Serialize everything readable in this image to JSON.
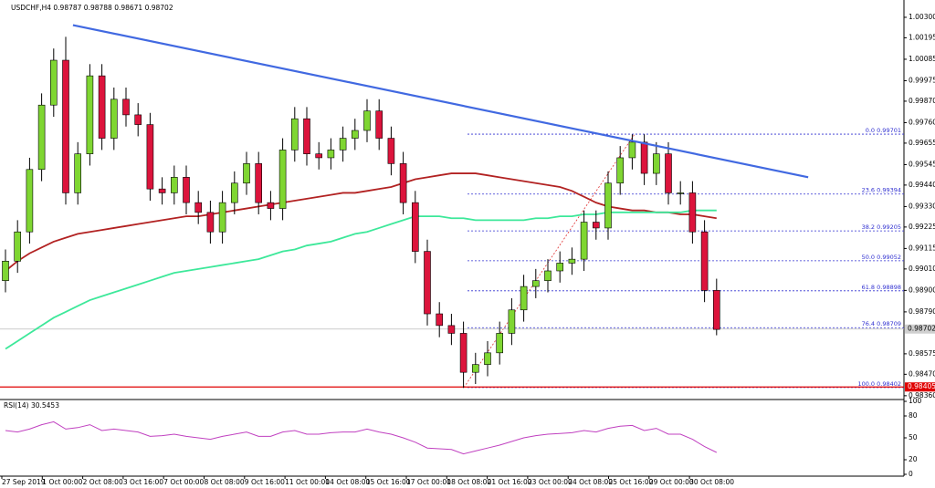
{
  "chart_data": {
    "type": "candlestick",
    "title": "USDCHF,H4  0.98787 0.98788 0.98671 0.98702",
    "bull_color": "#7fd632",
    "bear_color": "#dc143c",
    "open": [
      0.9895,
      0.9905,
      0.992,
      0.9952,
      0.9985,
      1.0008,
      0.994,
      0.996,
      1.0,
      0.9968,
      0.9988,
      0.998,
      0.9975,
      0.9942,
      0.994,
      0.9948,
      0.9935,
      0.993,
      0.992,
      0.9935,
      0.9945,
      0.9955,
      0.9935,
      0.9932,
      0.9962,
      0.9978,
      0.996,
      0.9958,
      0.9962,
      0.9968,
      0.9972,
      0.9982,
      0.9968,
      0.9955,
      0.9935,
      0.991,
      0.9878,
      0.9872,
      0.9868,
      0.9848,
      0.9852,
      0.9858,
      0.9868,
      0.988,
      0.9892,
      0.9895,
      0.99,
      0.9904,
      0.9906,
      0.9925,
      0.9922,
      0.9945,
      0.9958,
      0.9966,
      0.995,
      0.996,
      0.994,
      0.994,
      0.992,
      0.989
    ],
    "high": [
      0.9911,
      0.9926,
      0.9958,
      0.9991,
      1.0014,
      1.002,
      0.9966,
      1.0006,
      1.0006,
      0.9994,
      0.9994,
      0.9986,
      0.9981,
      0.9948,
      0.9954,
      0.9954,
      0.9941,
      0.9936,
      0.9941,
      0.9951,
      0.9961,
      0.9961,
      0.9941,
      0.9968,
      0.9984,
      0.9984,
      0.9966,
      0.9968,
      0.9974,
      0.9978,
      0.9988,
      0.9988,
      0.9974,
      0.9961,
      0.9941,
      0.9916,
      0.9884,
      0.9878,
      0.9874,
      0.9858,
      0.9864,
      0.9874,
      0.9886,
      0.9898,
      0.9901,
      0.9906,
      0.991,
      0.9912,
      0.9931,
      0.9931,
      0.9951,
      0.9964,
      0.997,
      0.997,
      0.9966,
      0.9966,
      0.9946,
      0.9946,
      0.9926,
      0.9896
    ],
    "low": [
      0.9889,
      0.9899,
      0.9914,
      0.9946,
      0.9979,
      0.9934,
      0.9934,
      0.9954,
      0.9962,
      0.9962,
      0.9974,
      0.9969,
      0.9936,
      0.9934,
      0.9934,
      0.9929,
      0.9924,
      0.9914,
      0.9914,
      0.9929,
      0.9939,
      0.9929,
      0.9926,
      0.9926,
      0.9956,
      0.9954,
      0.9952,
      0.9952,
      0.9956,
      0.9962,
      0.9966,
      0.9962,
      0.9949,
      0.9929,
      0.9904,
      0.9872,
      0.9866,
      0.9862,
      0.984,
      0.9842,
      0.9846,
      0.9852,
      0.9862,
      0.9874,
      0.9886,
      0.9889,
      0.9894,
      0.9898,
      0.99,
      0.9916,
      0.9916,
      0.9939,
      0.9952,
      0.9944,
      0.9944,
      0.9934,
      0.9934,
      0.9914,
      0.9884,
      0.9867
    ],
    "close": [
      0.9905,
      0.992,
      0.9952,
      0.9985,
      1.0008,
      0.994,
      0.996,
      1.0,
      0.9968,
      0.9988,
      0.998,
      0.9975,
      0.9942,
      0.994,
      0.9948,
      0.9935,
      0.993,
      0.992,
      0.9935,
      0.9945,
      0.9955,
      0.9935,
      0.9932,
      0.9962,
      0.9978,
      0.996,
      0.9958,
      0.9962,
      0.9968,
      0.9972,
      0.9982,
      0.9968,
      0.9955,
      0.9935,
      0.991,
      0.9878,
      0.9872,
      0.9868,
      0.9848,
      0.9852,
      0.9858,
      0.9868,
      0.988,
      0.9892,
      0.9895,
      0.99,
      0.9904,
      0.9906,
      0.9925,
      0.9922,
      0.9945,
      0.9958,
      0.9966,
      0.995,
      0.996,
      0.994,
      0.994,
      0.992,
      0.989,
      0.987
    ],
    "series": [
      {
        "color": "#b22222",
        "values": [
          0.99,
          0.9905,
          0.9909,
          0.9912,
          0.9915,
          0.9917,
          0.9919,
          0.992,
          0.9921,
          0.9922,
          0.9923,
          0.9924,
          0.9925,
          0.9926,
          0.9927,
          0.9928,
          0.9928,
          0.9929,
          0.993,
          0.9931,
          0.9932,
          0.9933,
          0.9934,
          0.9935,
          0.9936,
          0.9937,
          0.9938,
          0.9939,
          0.994,
          0.994,
          0.9941,
          0.9942,
          0.9943,
          0.9945,
          0.9947,
          0.9948,
          0.9949,
          0.995,
          0.995,
          0.995,
          0.9949,
          0.9948,
          0.9947,
          0.9946,
          0.9945,
          0.9944,
          0.9943,
          0.9941,
          0.9938,
          0.9935,
          0.9933,
          0.9932,
          0.9931,
          0.9931,
          0.993,
          0.993,
          0.9929,
          0.9929,
          0.9928,
          0.9927
        ]
      },
      {
        "color": "#3de89a",
        "values": [
          0.986,
          0.9864,
          0.9868,
          0.9872,
          0.9876,
          0.9879,
          0.9882,
          0.9885,
          0.9887,
          0.9889,
          0.9891,
          0.9893,
          0.9895,
          0.9897,
          0.9899,
          0.99,
          0.9901,
          0.9902,
          0.9903,
          0.9904,
          0.9905,
          0.9906,
          0.9908,
          0.991,
          0.9911,
          0.9913,
          0.9914,
          0.9915,
          0.9917,
          0.9919,
          0.992,
          0.9922,
          0.9924,
          0.9926,
          0.9928,
          0.9928,
          0.9928,
          0.9927,
          0.9927,
          0.9926,
          0.9926,
          0.9926,
          0.9926,
          0.9926,
          0.9927,
          0.9927,
          0.9928,
          0.9928,
          0.9929,
          0.9929,
          0.993,
          0.993,
          0.993,
          0.993,
          0.993,
          0.993,
          0.993,
          0.9931,
          0.9931,
          0.9931
        ]
      }
    ],
    "trendline": {
      "color": "#4169e1",
      "x": [
        5.6,
        66.6
      ],
      "y": [
        1.0026,
        0.9948
      ]
    },
    "fib_levels": [
      {
        "value": 0.99701,
        "label": "0.0  0.99701"
      },
      {
        "value": 0.99394,
        "label": "23.6  0.99394"
      },
      {
        "value": 0.99205,
        "label": "38.2  0.99205"
      },
      {
        "value": 0.99052,
        "label": "50.0  0.99052"
      },
      {
        "value": 0.98898,
        "label": "61.8  0.98898"
      },
      {
        "value": 0.98709,
        "label": "76.4  0.98709"
      },
      {
        "value": 0.98402,
        "label": "100.0  0.98402"
      }
    ],
    "current_price": 0.98702,
    "support_price": 0.98405,
    "ylim": [
      0.9835,
      1.0037
    ],
    "yticks": [
      {
        "value": 1.003,
        "label": "1.00300"
      },
      {
        "value": 1.00195,
        "label": "1.00195"
      },
      {
        "value": 1.00085,
        "label": "1.00085"
      },
      {
        "value": 0.99975,
        "label": "0.99975"
      },
      {
        "value": 0.9987,
        "label": "0.99870"
      },
      {
        "value": 0.9976,
        "label": "0.99760"
      },
      {
        "value": 0.99655,
        "label": "0.99655"
      },
      {
        "value": 0.99545,
        "label": "0.99545"
      },
      {
        "value": 0.9944,
        "label": "0.99440"
      },
      {
        "value": 0.9933,
        "label": "0.99330"
      },
      {
        "value": 0.99225,
        "label": "0.99225"
      },
      {
        "value": 0.99115,
        "label": "0.99115"
      },
      {
        "value": 0.9901,
        "label": "0.99010"
      },
      {
        "value": 0.989,
        "label": "0.98900"
      },
      {
        "value": 0.9879,
        "label": "0.98790"
      },
      {
        "value": 0.98575,
        "label": "0.98575"
      },
      {
        "value": 0.9847,
        "label": "0.98470"
      },
      {
        "value": 0.9836,
        "label": "0.98360"
      }
    ],
    "x_labels": [
      "27 Sep 2019",
      "1 Oct 00:00",
      "2 Oct 08:00",
      "3 Oct 16:00",
      "7 Oct 00:00",
      "8 Oct 08:00",
      "9 Oct 16:00",
      "11 Oct 00:00",
      "14 Oct 08:00",
      "15 Oct 16:00",
      "17 Oct 00:00",
      "18 Oct 08:00",
      "21 Oct 16:00",
      "23 Oct 00:00",
      "24 Oct 08:00",
      "25 Oct 16:00",
      "29 Oct 00:00",
      "30 Oct 08:00"
    ],
    "rsi": {
      "label": "RSI(14) 30.5453",
      "color": "#c040c0",
      "values": [
        60,
        58,
        62,
        68,
        72,
        62,
        64,
        68,
        60,
        62,
        60,
        58,
        52,
        53,
        55,
        52,
        50,
        48,
        52,
        55,
        58,
        52,
        52,
        58,
        60,
        55,
        55,
        57,
        58,
        58,
        62,
        58,
        55,
        50,
        44,
        36,
        35,
        34,
        28,
        32,
        36,
        40,
        45,
        50,
        53,
        55,
        56,
        57,
        60,
        58,
        63,
        66,
        67,
        60,
        63,
        55,
        55,
        48,
        38,
        30
      ],
      "ylim": [
        0,
        100
      ],
      "yticks": [
        100,
        80,
        50,
        20,
        0
      ]
    }
  }
}
